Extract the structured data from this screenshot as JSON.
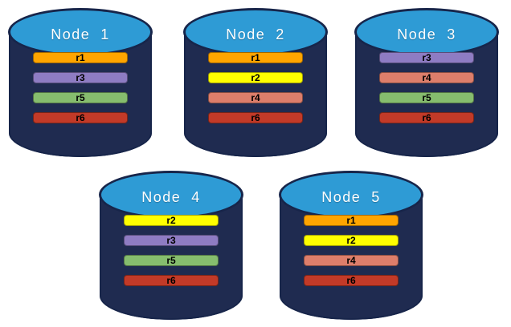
{
  "diagram": {
    "kind": "database-replication-nodes"
  },
  "colors": {
    "background": "#ffffff",
    "cylinder_body": "#1f2b50",
    "cylinder_top": "#2e9bd5",
    "cylinder_outline": "#17254a",
    "node_label": "#ffffff",
    "bar_text": "#000000"
  },
  "replica_colors": {
    "r1": "#ffa500",
    "r2": "#ffff00",
    "r3": "#8e7cc3",
    "r4": "#dd7e6b",
    "r5": "#86bd6e",
    "r6": "#c23a28"
  },
  "nodes": [
    {
      "id": "node-1",
      "label": "Node  1",
      "replicas": [
        "r1",
        "r3",
        "r5",
        "r6"
      ]
    },
    {
      "id": "node-2",
      "label": "Node  2",
      "replicas": [
        "r1",
        "r2",
        "r4",
        "r6"
      ]
    },
    {
      "id": "node-3",
      "label": "Node  3",
      "replicas": [
        "r3",
        "r4",
        "r5",
        "r6"
      ]
    },
    {
      "id": "node-4",
      "label": "Node  4",
      "replicas": [
        "r2",
        "r3",
        "r5",
        "r6"
      ]
    },
    {
      "id": "node-5",
      "label": "Node  5",
      "replicas": [
        "r1",
        "r2",
        "r4",
        "r6"
      ]
    }
  ]
}
